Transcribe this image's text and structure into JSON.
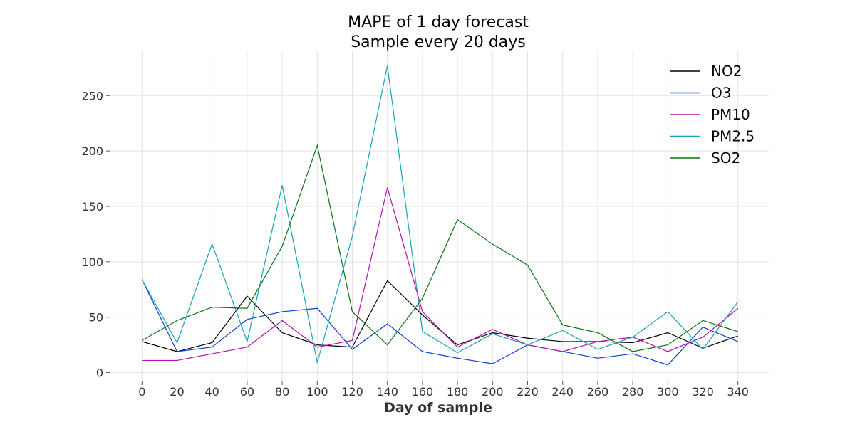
{
  "chart_data": {
    "type": "line",
    "title": [
      "MAPE of 1 day forecast",
      "Sample every 20 days"
    ],
    "xlabel": "Day of sample",
    "ylabel": "",
    "x": [
      0,
      20,
      40,
      60,
      80,
      100,
      120,
      140,
      160,
      180,
      200,
      220,
      240,
      260,
      280,
      300,
      320,
      340
    ],
    "xlim": [
      -18,
      358
    ],
    "ylim": [
      -8,
      290
    ],
    "xticks": [
      0,
      20,
      40,
      60,
      80,
      100,
      120,
      140,
      160,
      180,
      200,
      220,
      240,
      260,
      280,
      300,
      320,
      340
    ],
    "yticks": [
      0,
      50,
      100,
      150,
      200,
      250
    ],
    "grid": true,
    "legend_position": "top-right",
    "series": [
      {
        "name": "NO2",
        "color": "#000000",
        "values": [
          28,
          19,
          27,
          69,
          36,
          25,
          23,
          83,
          52,
          25,
          36,
          31,
          28,
          28,
          27,
          36,
          22,
          33
        ]
      },
      {
        "name": "O3",
        "color": "#0a3ed6",
        "values": [
          84,
          19,
          23,
          48,
          55,
          58,
          21,
          44,
          19,
          13,
          8,
          25,
          19,
          13,
          17,
          7,
          41,
          28
        ]
      },
      {
        "name": "PM10",
        "color": "#b30fb3",
        "values": [
          11,
          11,
          17,
          23,
          47,
          23,
          29,
          167,
          55,
          23,
          39,
          25,
          19,
          28,
          32,
          19,
          32,
          58
        ]
      },
      {
        "name": "PM2.5",
        "color": "#13a4b7",
        "values": [
          84,
          27,
          116,
          28,
          169,
          9,
          123,
          277,
          37,
          18,
          35,
          25,
          38,
          21,
          32,
          55,
          21,
          64
        ]
      },
      {
        "name": "SO2",
        "color": "#0a7214",
        "values": [
          29,
          47,
          59,
          58,
          114,
          205,
          55,
          25,
          67,
          138,
          116,
          97,
          43,
          36,
          19,
          25,
          47,
          37
        ]
      }
    ]
  }
}
